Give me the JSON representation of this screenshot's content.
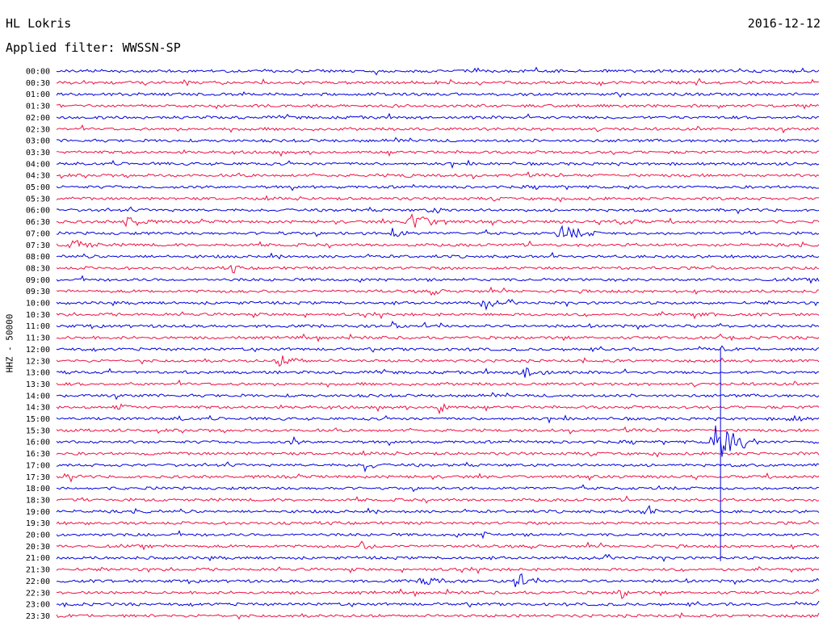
{
  "header": {
    "station": "HL Lokris",
    "date": "2016-12-12",
    "filter": "Applied filter: WWSSN-SP",
    "channel": "HHZ - 50000"
  },
  "chart_data": {
    "type": "line",
    "title": "HL Lokris",
    "subtitle": "Applied filter: WWSSN-SP",
    "ylabel": "HHZ - 50000",
    "xlabel": "",
    "colors": [
      "#0000dd",
      "#ee1144"
    ],
    "time_labels": [
      "00:00",
      "00:30",
      "01:00",
      "01:30",
      "02:00",
      "02:30",
      "03:00",
      "03:30",
      "04:00",
      "04:30",
      "05:00",
      "05:30",
      "06:00",
      "06:30",
      "07:00",
      "07:30",
      "08:00",
      "08:30",
      "09:00",
      "09:30",
      "10:00",
      "10:30",
      "11:00",
      "11:30",
      "12:00",
      "12:30",
      "13:00",
      "13:30",
      "14:00",
      "14:30",
      "15:00",
      "15:30",
      "16:00",
      "16:30",
      "17:00",
      "17:30",
      "18:00",
      "18:30",
      "19:00",
      "19:30",
      "20:00",
      "20:30",
      "21:00",
      "21:30",
      "22:00",
      "22:30",
      "23:00",
      "23:30"
    ],
    "events": [
      {
        "row": 1,
        "t": 0.84,
        "amp": 6,
        "dur": 0.01
      },
      {
        "row": 3,
        "t": 0.39,
        "amp": 3,
        "dur": 0.01
      },
      {
        "row": 9,
        "t": 0.46,
        "amp": 5,
        "dur": 0.01
      },
      {
        "row": 12,
        "t": 0.49,
        "amp": 5,
        "dur": 0.02
      },
      {
        "row": 13,
        "t": 0.09,
        "amp": 8,
        "dur": 0.04
      },
      {
        "row": 13,
        "t": 0.46,
        "amp": 12,
        "dur": 0.06
      },
      {
        "row": 13,
        "t": 0.73,
        "amp": 4,
        "dur": 0.04
      },
      {
        "row": 14,
        "t": 0.29,
        "amp": 5,
        "dur": 0.01
      },
      {
        "row": 14,
        "t": 0.44,
        "amp": 9,
        "dur": 0.02
      },
      {
        "row": 14,
        "t": 0.66,
        "amp": 10,
        "dur": 0.05
      },
      {
        "row": 15,
        "t": 0.02,
        "amp": 7,
        "dur": 0.04
      },
      {
        "row": 17,
        "t": 0.23,
        "amp": 8,
        "dur": 0.01
      },
      {
        "row": 19,
        "t": 0.49,
        "amp": 4,
        "dur": 0.02
      },
      {
        "row": 20,
        "t": 0.56,
        "amp": 9,
        "dur": 0.02
      },
      {
        "row": 21,
        "t": 0.83,
        "amp": 3,
        "dur": 0.04
      },
      {
        "row": 22,
        "t": 0.44,
        "amp": 6,
        "dur": 0.01
      },
      {
        "row": 25,
        "t": 0.29,
        "amp": 8,
        "dur": 0.04
      },
      {
        "row": 26,
        "t": 0.61,
        "amp": 9,
        "dur": 0.04
      },
      {
        "row": 29,
        "t": 0.08,
        "amp": 4,
        "dur": 0.02
      },
      {
        "row": 29,
        "t": 0.5,
        "amp": 13,
        "dur": 0.02
      },
      {
        "row": 30,
        "t": 0.16,
        "amp": 3,
        "dur": 0.01
      },
      {
        "row": 30,
        "t": 0.96,
        "amp": 4,
        "dur": 0.03
      },
      {
        "row": 32,
        "t": 0.31,
        "amp": 6,
        "dur": 0.01
      },
      {
        "row": 32,
        "t": 0.86,
        "amp": 30,
        "dur": 0.06
      },
      {
        "row": 34,
        "t": 0.4,
        "amp": 12,
        "dur": 0.02
      },
      {
        "row": 35,
        "t": 0.01,
        "amp": 5,
        "dur": 0.02
      },
      {
        "row": 38,
        "t": 0.77,
        "amp": 4,
        "dur": 0.03
      },
      {
        "row": 40,
        "t": 0.56,
        "amp": 7,
        "dur": 0.01
      },
      {
        "row": 41,
        "t": 0.4,
        "amp": 6,
        "dur": 0.02
      },
      {
        "row": 44,
        "t": 0.48,
        "amp": 7,
        "dur": 0.04
      },
      {
        "row": 44,
        "t": 0.6,
        "amp": 10,
        "dur": 0.03
      },
      {
        "row": 45,
        "t": 0.74,
        "amp": 9,
        "dur": 0.01
      }
    ],
    "long_spike": {
      "row": 24,
      "t": 0.87,
      "to_row": 42
    }
  }
}
